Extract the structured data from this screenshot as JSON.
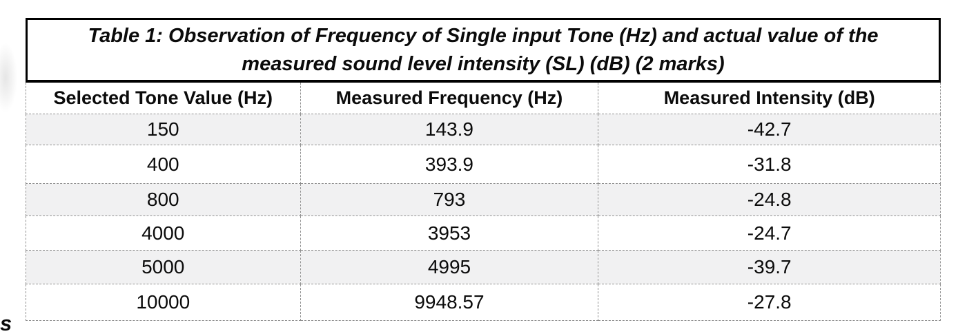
{
  "page": {
    "background": "#ffffff",
    "cutoff_fragment": "s"
  },
  "table": {
    "caption": {
      "line1": "Table 1: Observation of Frequency of Single input Tone (Hz) and actual value of the",
      "line2": "measured sound level intensity (SL) (dB) (2 marks)"
    },
    "columns": [
      "Selected Tone Value (Hz)",
      "Measured Frequency (Hz)",
      "Measured Intensity (dB)"
    ],
    "rows": [
      {
        "tone": "150",
        "frequency": "143.9",
        "intensity": "-42.7"
      },
      {
        "tone": "400",
        "frequency": "393.9",
        "intensity": "-31.8"
      },
      {
        "tone": "800",
        "frequency": "793",
        "intensity": "-24.8"
      },
      {
        "tone": "4000",
        "frequency": "3953",
        "intensity": "-24.7"
      },
      {
        "tone": "5000",
        "frequency": "4995",
        "intensity": "-39.7"
      },
      {
        "tone": "10000",
        "frequency": "9948.57",
        "intensity": "-27.8"
      }
    ],
    "colors": {
      "row_shade": "#f1f1f2",
      "solid_border": "#000000",
      "dashed_border": "#8f8f8f"
    }
  }
}
